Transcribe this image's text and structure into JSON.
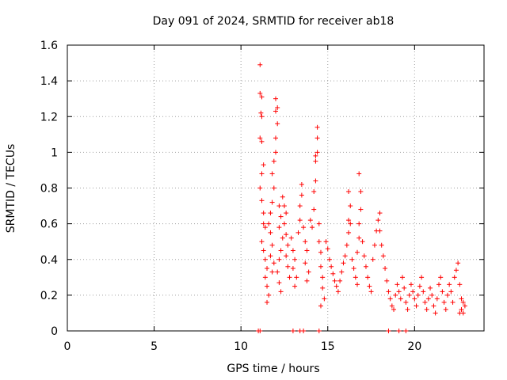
{
  "chart_data": {
    "type": "scatter",
    "title": "Day 091 of 2024, SRMTID for receiver ab18",
    "xlabel": "GPS time / hours",
    "ylabel": "SRMTID / TECUs",
    "xlim": [
      0,
      24
    ],
    "ylim": [
      0,
      1.6
    ],
    "xticks": [
      0,
      5,
      10,
      15,
      20
    ],
    "xtick_labels": [
      "0",
      "5",
      "10",
      "15",
      "20"
    ],
    "yticks": [
      0,
      0.2,
      0.4,
      0.6,
      0.8,
      1.0,
      1.2,
      1.4,
      1.6
    ],
    "ytick_labels": [
      "0",
      "0.2",
      "0.4",
      "0.6",
      "0.8",
      "1",
      "1.2",
      "1.4",
      "1.6"
    ],
    "grid": true,
    "marker": "+",
    "series": [
      {
        "name": "SRMTID",
        "color": "#ff0000",
        "points": [
          [
            11.0,
            0.0
          ],
          [
            11.1,
            0.0
          ],
          [
            13.0,
            0.0
          ],
          [
            13.4,
            0.0
          ],
          [
            13.6,
            0.0
          ],
          [
            14.5,
            0.0
          ],
          [
            18.5,
            0.0
          ],
          [
            19.1,
            0.0
          ],
          [
            19.5,
            0.0
          ],
          [
            11.1,
            1.49
          ],
          [
            11.1,
            1.33
          ],
          [
            11.2,
            1.31
          ],
          [
            11.15,
            1.22
          ],
          [
            11.2,
            1.2
          ],
          [
            11.1,
            1.08
          ],
          [
            11.2,
            1.06
          ],
          [
            11.3,
            0.93
          ],
          [
            11.2,
            0.88
          ],
          [
            11.1,
            0.8
          ],
          [
            11.2,
            0.73
          ],
          [
            11.3,
            0.66
          ],
          [
            11.3,
            0.6
          ],
          [
            11.4,
            0.58
          ],
          [
            11.2,
            0.5
          ],
          [
            11.3,
            0.45
          ],
          [
            11.4,
            0.4
          ],
          [
            11.5,
            0.35
          ],
          [
            11.4,
            0.3
          ],
          [
            11.5,
            0.25
          ],
          [
            11.6,
            0.2
          ],
          [
            11.5,
            0.16
          ],
          [
            11.7,
            0.55
          ],
          [
            11.8,
            0.48
          ],
          [
            11.7,
            0.42
          ],
          [
            11.9,
            0.38
          ],
          [
            11.8,
            0.33
          ],
          [
            11.6,
            0.6
          ],
          [
            11.7,
            0.66
          ],
          [
            11.8,
            0.72
          ],
          [
            11.9,
            0.8
          ],
          [
            11.8,
            0.88
          ],
          [
            11.9,
            0.95
          ],
          [
            12.0,
            1.0
          ],
          [
            12.0,
            1.08
          ],
          [
            12.1,
            1.16
          ],
          [
            12.0,
            1.23
          ],
          [
            12.0,
            1.3
          ],
          [
            12.1,
            1.25
          ],
          [
            12.2,
            0.7
          ],
          [
            12.3,
            0.64
          ],
          [
            12.2,
            0.58
          ],
          [
            12.4,
            0.52
          ],
          [
            12.3,
            0.45
          ],
          [
            12.2,
            0.4
          ],
          [
            12.1,
            0.33
          ],
          [
            12.2,
            0.27
          ],
          [
            12.3,
            0.22
          ],
          [
            12.4,
            0.75
          ],
          [
            12.5,
            0.7
          ],
          [
            12.6,
            0.66
          ],
          [
            12.5,
            0.6
          ],
          [
            12.6,
            0.54
          ],
          [
            12.7,
            0.48
          ],
          [
            12.6,
            0.42
          ],
          [
            12.7,
            0.36
          ],
          [
            12.8,
            0.3
          ],
          [
            12.9,
            0.52
          ],
          [
            13.0,
            0.45
          ],
          [
            13.1,
            0.4
          ],
          [
            13.0,
            0.35
          ],
          [
            13.2,
            0.3
          ],
          [
            13.1,
            0.25
          ],
          [
            13.3,
            0.55
          ],
          [
            13.4,
            0.62
          ],
          [
            13.4,
            0.7
          ],
          [
            13.5,
            0.82
          ],
          [
            13.5,
            0.76
          ],
          [
            13.6,
            0.58
          ],
          [
            13.7,
            0.5
          ],
          [
            13.8,
            0.45
          ],
          [
            13.7,
            0.38
          ],
          [
            13.9,
            0.33
          ],
          [
            13.8,
            0.28
          ],
          [
            14.0,
            0.62
          ],
          [
            14.1,
            0.58
          ],
          [
            14.2,
            0.68
          ],
          [
            14.2,
            0.78
          ],
          [
            14.3,
            0.84
          ],
          [
            14.3,
            0.95
          ],
          [
            14.4,
            1.0
          ],
          [
            14.4,
            1.08
          ],
          [
            14.4,
            1.14
          ],
          [
            14.3,
            0.98
          ],
          [
            14.5,
            0.6
          ],
          [
            14.5,
            0.5
          ],
          [
            14.6,
            0.44
          ],
          [
            14.6,
            0.36
          ],
          [
            14.7,
            0.3
          ],
          [
            14.7,
            0.24
          ],
          [
            14.8,
            0.18
          ],
          [
            14.6,
            0.14
          ],
          [
            14.9,
            0.5
          ],
          [
            15.0,
            0.46
          ],
          [
            15.1,
            0.4
          ],
          [
            15.2,
            0.36
          ],
          [
            15.3,
            0.32
          ],
          [
            15.4,
            0.28
          ],
          [
            15.5,
            0.25
          ],
          [
            15.6,
            0.22
          ],
          [
            15.7,
            0.28
          ],
          [
            15.8,
            0.33
          ],
          [
            15.9,
            0.38
          ],
          [
            16.0,
            0.42
          ],
          [
            16.1,
            0.48
          ],
          [
            16.2,
            0.55
          ],
          [
            16.2,
            0.62
          ],
          [
            16.3,
            0.7
          ],
          [
            16.2,
            0.78
          ],
          [
            16.3,
            0.6
          ],
          [
            16.4,
            0.4
          ],
          [
            16.5,
            0.35
          ],
          [
            16.6,
            0.3
          ],
          [
            16.7,
            0.26
          ],
          [
            16.7,
            0.44
          ],
          [
            16.8,
            0.52
          ],
          [
            16.8,
            0.6
          ],
          [
            16.9,
            0.68
          ],
          [
            16.9,
            0.78
          ],
          [
            16.8,
            0.88
          ],
          [
            17.0,
            0.5
          ],
          [
            17.1,
            0.42
          ],
          [
            17.2,
            0.36
          ],
          [
            17.3,
            0.3
          ],
          [
            17.4,
            0.25
          ],
          [
            17.5,
            0.22
          ],
          [
            17.6,
            0.4
          ],
          [
            17.7,
            0.48
          ],
          [
            17.8,
            0.56
          ],
          [
            17.9,
            0.62
          ],
          [
            18.0,
            0.66
          ],
          [
            18.0,
            0.56
          ],
          [
            18.1,
            0.48
          ],
          [
            18.2,
            0.42
          ],
          [
            18.3,
            0.35
          ],
          [
            18.4,
            0.28
          ],
          [
            18.5,
            0.22
          ],
          [
            18.6,
            0.18
          ],
          [
            18.7,
            0.14
          ],
          [
            18.8,
            0.12
          ],
          [
            18.9,
            0.2
          ],
          [
            19.0,
            0.26
          ],
          [
            19.1,
            0.22
          ],
          [
            19.2,
            0.18
          ],
          [
            19.3,
            0.3
          ],
          [
            19.4,
            0.24
          ],
          [
            19.5,
            0.16
          ],
          [
            19.6,
            0.12
          ],
          [
            19.7,
            0.2
          ],
          [
            19.8,
            0.26
          ],
          [
            19.9,
            0.22
          ],
          [
            20.0,
            0.18
          ],
          [
            20.1,
            0.14
          ],
          [
            20.2,
            0.2
          ],
          [
            20.3,
            0.25
          ],
          [
            20.4,
            0.3
          ],
          [
            20.5,
            0.22
          ],
          [
            20.6,
            0.16
          ],
          [
            20.7,
            0.12
          ],
          [
            20.8,
            0.18
          ],
          [
            20.9,
            0.24
          ],
          [
            21.0,
            0.2
          ],
          [
            21.1,
            0.14
          ],
          [
            21.2,
            0.1
          ],
          [
            21.3,
            0.18
          ],
          [
            21.4,
            0.26
          ],
          [
            21.5,
            0.3
          ],
          [
            21.6,
            0.22
          ],
          [
            21.7,
            0.16
          ],
          [
            21.8,
            0.12
          ],
          [
            21.9,
            0.2
          ],
          [
            22.0,
            0.26
          ],
          [
            22.1,
            0.22
          ],
          [
            22.2,
            0.16
          ],
          [
            22.3,
            0.3
          ],
          [
            22.4,
            0.34
          ],
          [
            22.5,
            0.38
          ],
          [
            22.6,
            0.26
          ],
          [
            22.7,
            0.18
          ],
          [
            22.7,
            0.12
          ],
          [
            22.8,
            0.1
          ],
          [
            22.8,
            0.16
          ],
          [
            22.9,
            0.14
          ],
          [
            22.6,
            0.1
          ]
        ]
      }
    ]
  }
}
